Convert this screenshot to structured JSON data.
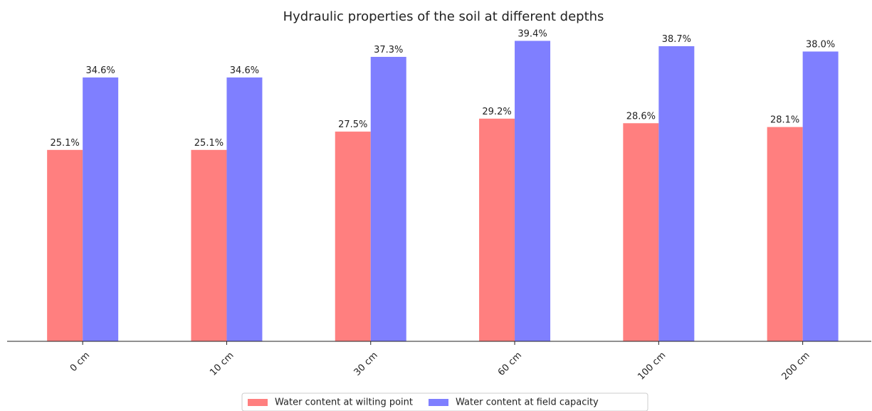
{
  "chart_data": {
    "type": "bar",
    "title": "Hydraulic properties of the soil at different depths",
    "categories": [
      "0 cm",
      "10 cm",
      "30 cm",
      "60 cm",
      "100 cm",
      "200 cm"
    ],
    "series": [
      {
        "name": "Water content at wilting point",
        "color": "#ff7f7f",
        "values": [
          25.1,
          25.1,
          27.5,
          29.2,
          28.6,
          28.1
        ],
        "value_labels": [
          "25.1%",
          "25.1%",
          "27.5%",
          "29.2%",
          "28.6%",
          "28.1%"
        ]
      },
      {
        "name": "Water content at field capacity",
        "color": "#7f7fff",
        "values": [
          34.6,
          34.6,
          37.3,
          39.4,
          38.7,
          38.0
        ],
        "value_labels": [
          "34.6%",
          "34.6%",
          "37.3%",
          "39.4%",
          "38.7%",
          "38.0%"
        ]
      }
    ],
    "ylim": [
      0,
      41.4
    ]
  }
}
